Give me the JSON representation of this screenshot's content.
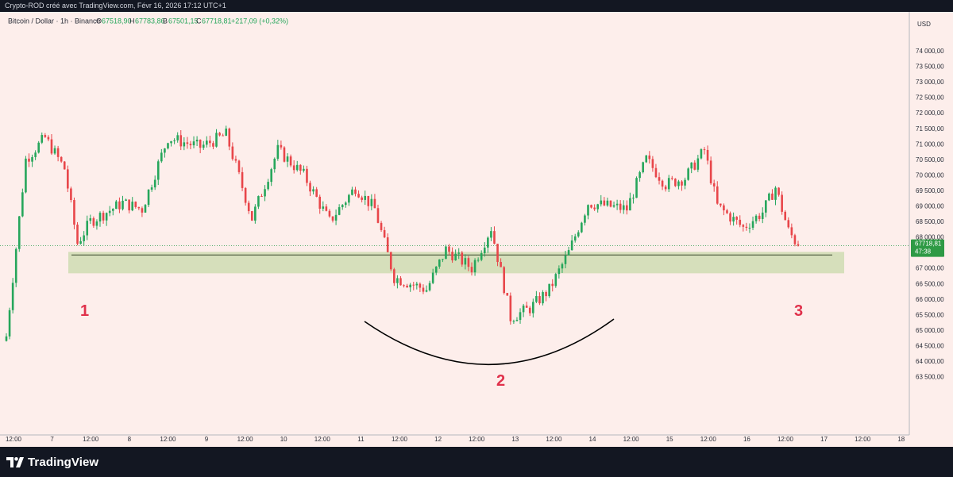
{
  "header": {
    "author_line": "Crypto-ROD créé avec TradingView.com, Févr 16, 2026 17:12 UTC+1"
  },
  "legend": {
    "symbol": "Bitcoin / Dollar · 1h · Binance",
    "o_label": "O",
    "o_value": "67518,90",
    "h_label": "H",
    "h_value": "67783,86",
    "b_label": "B",
    "b_value": "67501,15",
    "c_label": "C",
    "c_value": "67718,81",
    "change": "+217,09 (+0,32%)"
  },
  "price_scale": {
    "currency": "USD",
    "ticks": [
      "74000,00",
      "73500,00",
      "73000,00",
      "72500,00",
      "72000,00",
      "71500,00",
      "71000,00",
      "70500,00",
      "70000,00",
      "69500,00",
      "69000,00",
      "68500,00",
      "68000,00",
      "67500,00",
      "67000,00",
      "66500,00",
      "66000,00",
      "65500,00",
      "65000,00",
      "64500,00",
      "64000,00",
      "63500,00"
    ],
    "last_price": "67718,81",
    "countdown": "47:38"
  },
  "time_scale": {
    "ticks": [
      "12:00",
      "7",
      "12:00",
      "8",
      "12:00",
      "9",
      "12:00",
      "10",
      "12:00",
      "11",
      "12:00",
      "12",
      "12:00",
      "13",
      "12:00",
      "14",
      "12:00",
      "15",
      "12:00",
      "16",
      "12:00",
      "17",
      "12:00",
      "18"
    ]
  },
  "annotations": {
    "marker_1": "1",
    "marker_2": "2",
    "marker_3": "3"
  },
  "footer": {
    "brand": "TradingView"
  },
  "colors": {
    "background": "#fdeeeb",
    "up": "#26a65b",
    "down": "#e8464a",
    "zone": "#cfdcb3",
    "marker": "#e0314b",
    "last_price_tag": "#2e9a45"
  },
  "chart_data": {
    "type": "candlestick",
    "symbol": "BTCUSD",
    "timeframe": "1h",
    "ylim": [
      63000,
      74500
    ],
    "support_zone": [
      66830,
      67520
    ],
    "support_line": 67420,
    "last_price": 67718.81,
    "path_keypoints": [
      {
        "date": "Feb 6 12:00",
        "close": 64800
      },
      {
        "date": "Feb 6 18:00",
        "close": 70500
      },
      {
        "date": "Feb 7 00:00",
        "close": 71200
      },
      {
        "date": "Feb 7 06:00",
        "close": 70200
      },
      {
        "date": "Feb 7 10:00",
        "close": 67800
      },
      {
        "date": "Feb 7 14:00",
        "close": 68500
      },
      {
        "date": "Feb 8 00:00",
        "close": 69100
      },
      {
        "date": "Feb 8 06:00",
        "close": 68900
      },
      {
        "date": "Feb 8 14:00",
        "close": 71200
      },
      {
        "date": "Feb 9 00:00",
        "close": 70900
      },
      {
        "date": "Feb 9 08:00",
        "close": 71300
      },
      {
        "date": "Feb 9 16:00",
        "close": 68600
      },
      {
        "date": "Feb 10 00:00",
        "close": 70800
      },
      {
        "date": "Feb 10 08:00",
        "close": 70000
      },
      {
        "date": "Feb 10 16:00",
        "close": 68500
      },
      {
        "date": "Feb 11 00:00",
        "close": 69600
      },
      {
        "date": "Feb 11 06:00",
        "close": 68900
      },
      {
        "date": "Feb 11 12:00",
        "close": 66700
      },
      {
        "date": "Feb 11 22:00",
        "close": 66300
      },
      {
        "date": "Feb 12 04:00",
        "close": 67600
      },
      {
        "date": "Feb 12 12:00",
        "close": 67000
      },
      {
        "date": "Feb 12 18:00",
        "close": 68300
      },
      {
        "date": "Feb 12 22:00",
        "close": 66400
      },
      {
        "date": "Feb 13 00:00",
        "close": 65400
      },
      {
        "date": "Feb 13 06:00",
        "close": 65700
      },
      {
        "date": "Feb 13 12:00",
        "close": 66300
      },
      {
        "date": "Feb 13 18:00",
        "close": 67500
      },
      {
        "date": "Feb 14 00:00",
        "close": 69100
      },
      {
        "date": "Feb 14 12:00",
        "close": 68900
      },
      {
        "date": "Feb 14 18:00",
        "close": 70500
      },
      {
        "date": "Feb 15 00:00",
        "close": 69700
      },
      {
        "date": "Feb 15 06:00",
        "close": 69900
      },
      {
        "date": "Feb 15 12:00",
        "close": 70800
      },
      {
        "date": "Feb 15 16:00",
        "close": 69000
      },
      {
        "date": "Feb 16 00:00",
        "close": 68300
      },
      {
        "date": "Feb 16 06:00",
        "close": 68800
      },
      {
        "date": "Feb 16 10:00",
        "close": 69600
      },
      {
        "date": "Feb 16 14:00",
        "close": 68200
      },
      {
        "date": "Feb 16 17:00",
        "close": 67719
      }
    ]
  }
}
